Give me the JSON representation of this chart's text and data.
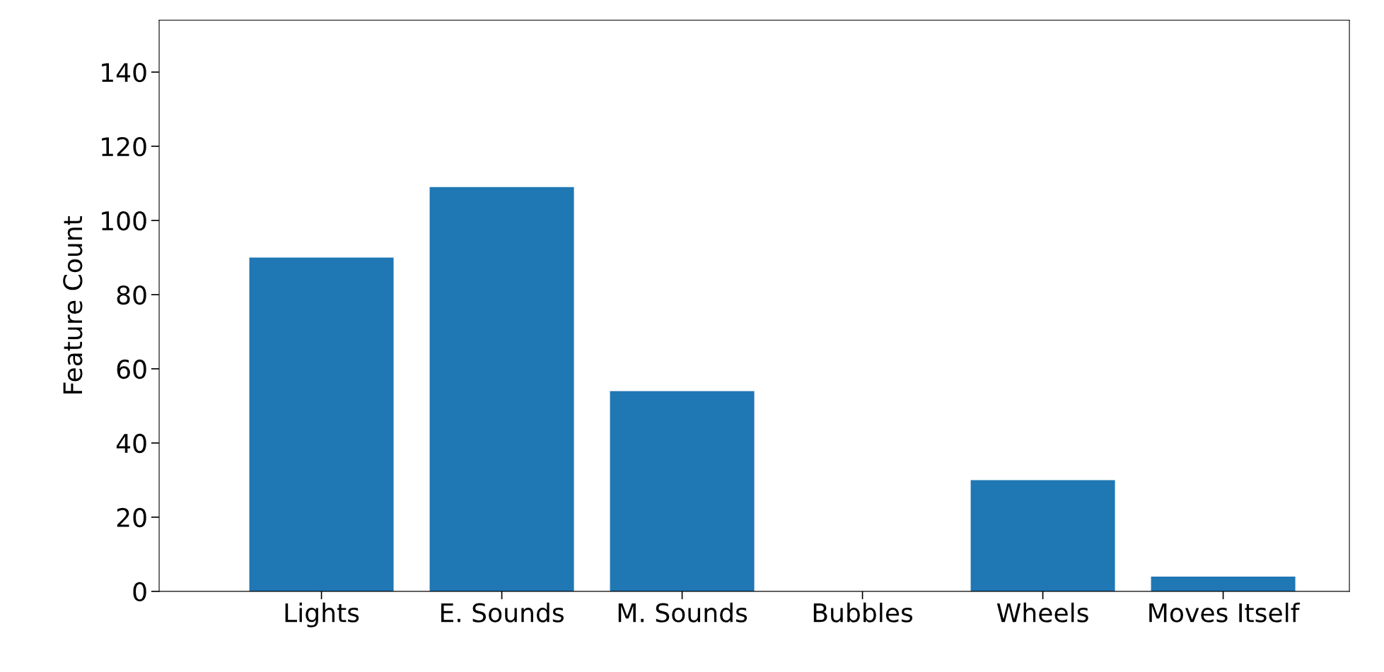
{
  "chart_data": {
    "type": "bar",
    "ylabel": "Feature Count",
    "categories": [
      "Lights",
      "E. Sounds",
      "M. Sounds",
      "Bubbles",
      "Wheels",
      "Moves Itself"
    ],
    "values": [
      90,
      109,
      54,
      0,
      30,
      4
    ],
    "color": "#1f77b4",
    "ylim": [
      0,
      154
    ],
    "yticks": [
      0,
      20,
      40,
      60,
      80,
      100,
      120,
      140
    ],
    "grid": false
  }
}
